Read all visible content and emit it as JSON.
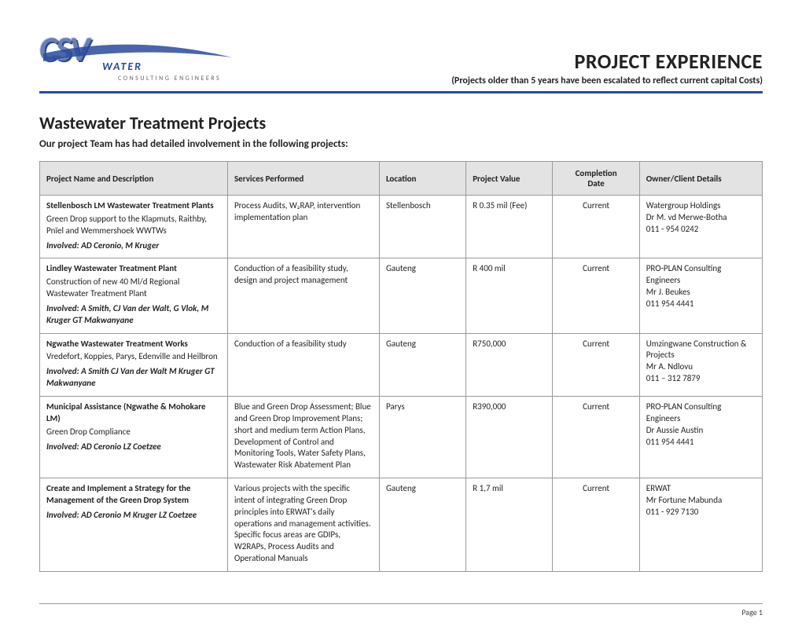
{
  "header": {
    "logo": {
      "main": "CSV",
      "sub": "WATER",
      "tag": "CONSULTING ENGINEERS"
    },
    "title": "PROJECT EXPERIENCE",
    "subtitle": "(Projects older than 5 years have been escalated to reflect current capital Costs)"
  },
  "section": {
    "title": "Wastewater Treatment Projects",
    "subtitle": "Our project Team has had detailed involvement in the following projects:"
  },
  "columns": {
    "c1": "Project Name and Description",
    "c2": "Services Performed",
    "c3": "Location",
    "c4": "Project Value",
    "c5a": "Completion",
    "c5b": "Date",
    "c6": "Owner/Client Details"
  },
  "rows": [
    {
      "name": "Stellenbosch LM Wastewater Treatment Plants",
      "desc": "Green Drop support to the Klapmuts, Raithby, Pnïel and Wemmershoek WWTWs",
      "involved": "Involved: AD Ceronio, M Kruger",
      "services": "Process Audits, W₂RAP, intervention implementation plan",
      "location": "Stellenbosch",
      "value": "R 0.35 mil (Fee)",
      "completion": "Current",
      "owner": "Watergroup Holdings",
      "person": "Dr M. vd Merwe-Botha",
      "phone": "011 - 954 0242"
    },
    {
      "name": "Lindley Wastewater Treatment Plant",
      "desc": "Construction of new 40 Ml/d Regional Wastewater Treatment Plant",
      "involved": "Involved: A Smith, CJ Van der Walt, G Vlok, M Kruger GT Makwanyane",
      "services": "Conduction of a feasibility study, design and project management",
      "location": "Gauteng",
      "value": "R 400 mil",
      "completion": "Current",
      "owner": "PRO-PLAN Consulting Engineers",
      "person": "Mr J. Beukes",
      "phone": "011 954 4441"
    },
    {
      "name": "Ngwathe Wastewater Treatment Works",
      "desc": "Vredefort, Koppies, Parys, Edenville and Heilbron",
      "involved": "Involved: A Smith CJ Van der Walt M Kruger GT Makwanyane",
      "services": "Conduction of a feasibility study",
      "location": "Gauteng",
      "value": "R750,000",
      "completion": "Current",
      "owner": "Umzingwane Construction & Projects",
      "person": "Mr A. Ndlovu",
      "phone": "011 – 312 7879"
    },
    {
      "name": "Municipal Assistance (Ngwathe & Mohokare LM)",
      "desc": "Green Drop Compliance",
      "involved": "Involved: AD Ceronio LZ Coetzee",
      "services": "Blue and Green Drop Assessment; Blue and Green Drop Improvement Plans; short and medium term Action Plans, Development of Control and Monitoring Tools, Water Safety Plans, Wastewater Risk Abatement Plan",
      "location": "Parys",
      "value": "R390,000",
      "completion": "Current",
      "owner": "PRO-PLAN Consulting Engineers",
      "person": "Dr Aussie Austin",
      "phone": "011 954 4441"
    },
    {
      "name": "Create and Implement a Strategy for the Management of the Green Drop System",
      "desc": "",
      "involved": "Involved: AD Ceronio M Kruger LZ Coetzee",
      "services": "Various projects with the specific intent of integrating Green Drop principles into ERWAT's daily operations and management activities.  Specific focus areas are GDIPs, W2RAPs, Process Audits and Operational Manuals",
      "location": "Gauteng",
      "value": "R 1,7 mil",
      "completion": "Current",
      "owner": "ERWAT",
      "person": "Mr Fortune Mabunda",
      "phone": "011 - 929 7130"
    }
  ],
  "footer": "Page 1"
}
